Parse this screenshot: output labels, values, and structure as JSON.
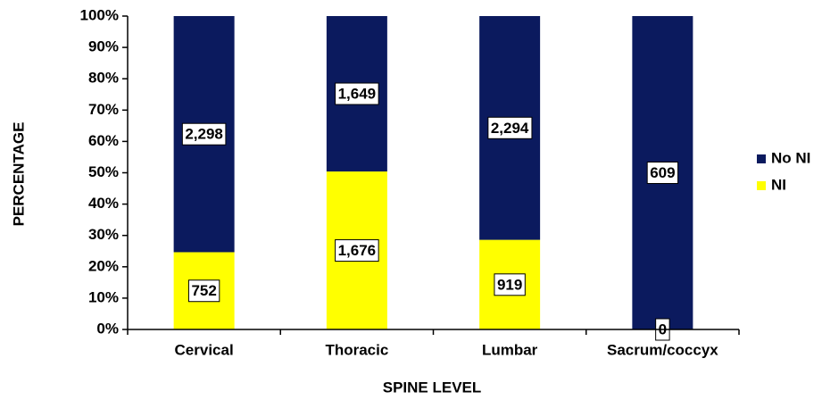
{
  "chart_data": {
    "type": "bar",
    "stacking": "percent",
    "ylabel": "PERCENTAGE",
    "xlabel": "SPINE LEVEL",
    "categories": [
      "Cervical",
      "Thoracic",
      "Lumbar",
      "Sacrum/coccyx"
    ],
    "series": [
      {
        "name": "NI",
        "color": "#ffff00",
        "values": [
          752,
          1676,
          919,
          0
        ],
        "value_labels": [
          "752",
          "1,676",
          "919",
          "0"
        ]
      },
      {
        "name": "No NI",
        "color": "#0b1a5e",
        "values": [
          2298,
          1649,
          2294,
          609
        ],
        "value_labels": [
          "2,298",
          "1,649",
          "2,294",
          "609"
        ]
      }
    ],
    "ylim": [
      0,
      100
    ],
    "yticks": [
      {
        "value": 0,
        "label": "0%"
      },
      {
        "value": 10,
        "label": "10%"
      },
      {
        "value": 20,
        "label": "20%"
      },
      {
        "value": 30,
        "label": "30%"
      },
      {
        "value": 40,
        "label": "40%"
      },
      {
        "value": 50,
        "label": "50%"
      },
      {
        "value": 60,
        "label": "60%"
      },
      {
        "value": 70,
        "label": "70%"
      },
      {
        "value": 80,
        "label": "80%"
      },
      {
        "value": 90,
        "label": "90%"
      },
      {
        "value": 100,
        "label": "100%"
      }
    ],
    "legend": "right"
  }
}
